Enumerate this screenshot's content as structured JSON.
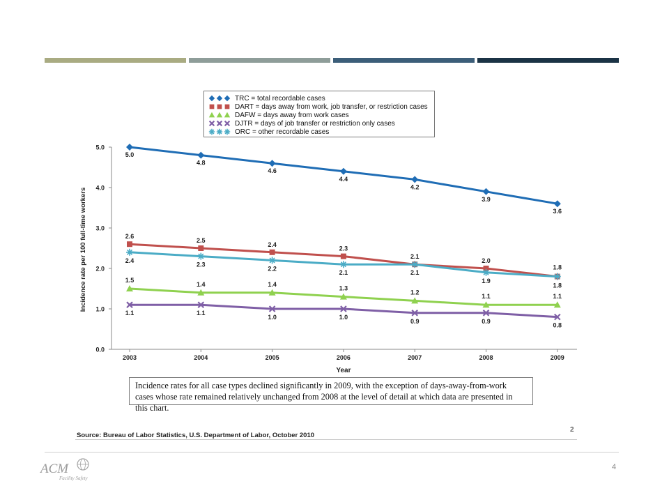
{
  "header_bars": [
    {
      "color": "#a9ab82"
    },
    {
      "color": "#8e9d99"
    },
    {
      "color": "#3c5e79"
    },
    {
      "color": "#1b3345"
    }
  ],
  "legend": [
    {
      "label": "TRC = total recordable cases",
      "color": "#1f6db5",
      "marker": "diamond"
    },
    {
      "label": "DART = days away from work, job transfer, or restriction cases",
      "color": "#c0504d",
      "marker": "square"
    },
    {
      "label": "DAFW = days away from work cases",
      "color": "#8fd14f",
      "marker": "triangle"
    },
    {
      "label": "DJTR = days of job transfer or restriction only cases",
      "color": "#7f5fa6",
      "marker": "x"
    },
    {
      "label": "ORC = other recordable cases",
      "color": "#4bacc6",
      "marker": "star"
    }
  ],
  "chart_data": {
    "type": "line",
    "title": "",
    "xlabel": "Year",
    "ylabel": "Incidence rate per 100 full-time workers",
    "ylim": [
      0,
      5
    ],
    "y_ticks": [
      "0.0",
      "1.0",
      "2.0",
      "3.0",
      "4.0",
      "5.0"
    ],
    "categories": [
      "2003",
      "2004",
      "2005",
      "2006",
      "2007",
      "2008",
      "2009"
    ],
    "grid": false,
    "legend_position": "top",
    "series": [
      {
        "name": "TRC = total recordable cases",
        "color": "#1f6db5",
        "marker": "diamond",
        "values": [
          5.0,
          4.8,
          4.6,
          4.4,
          4.2,
          3.9,
          3.6
        ],
        "labels": [
          "5.0",
          "4.8",
          "4.6",
          "4.4",
          "4.2",
          "3.9",
          "3.6"
        ]
      },
      {
        "name": "DART = days away from work, job transfer, or restriction cases",
        "color": "#c0504d",
        "marker": "square",
        "values": [
          2.6,
          2.5,
          2.4,
          2.3,
          2.1,
          2.0,
          1.8
        ],
        "labels": [
          "2.6",
          "2.5",
          "2.4",
          "2.3",
          "2.1",
          "2.0",
          "1.8"
        ]
      },
      {
        "name": "ORC = other recordable cases",
        "color": "#4bacc6",
        "marker": "star",
        "values": [
          2.4,
          2.3,
          2.2,
          2.1,
          2.1,
          1.9,
          1.8
        ],
        "labels": [
          "2.4",
          "2.3",
          "2.2",
          "2.1",
          "2.1",
          "1.9",
          "1.8"
        ]
      },
      {
        "name": "DAFW = days away from work cases",
        "color": "#8fd14f",
        "marker": "triangle",
        "values": [
          1.5,
          1.4,
          1.4,
          1.3,
          1.2,
          1.1,
          1.1
        ],
        "labels": [
          "1.5",
          "1.4",
          "1.4",
          "1.3",
          "1.2",
          "1.1",
          "1.1"
        ]
      },
      {
        "name": "DJTR = days of job transfer or restriction only cases",
        "color": "#7f5fa6",
        "marker": "x",
        "values": [
          1.1,
          1.1,
          1.0,
          1.0,
          0.9,
          0.9,
          0.8
        ],
        "labels": [
          "1.1",
          "1.1",
          "1.0",
          "1.0",
          "0.9",
          "0.9",
          "0.8"
        ]
      }
    ]
  },
  "note": "Incidence rates for all case types declined significantly in 2009, with the exception of days-away-from-work cases whose rate remained relatively unchanged from 2008 at the level of detail at which data are presented in this chart.",
  "source": "Source:  Bureau of Labor Statistics, U.S. Department of Labor, October 2010",
  "footnote_number": "2",
  "page_number": "4",
  "logo": {
    "text": "ACM",
    "subtext": "Facility Safety"
  }
}
